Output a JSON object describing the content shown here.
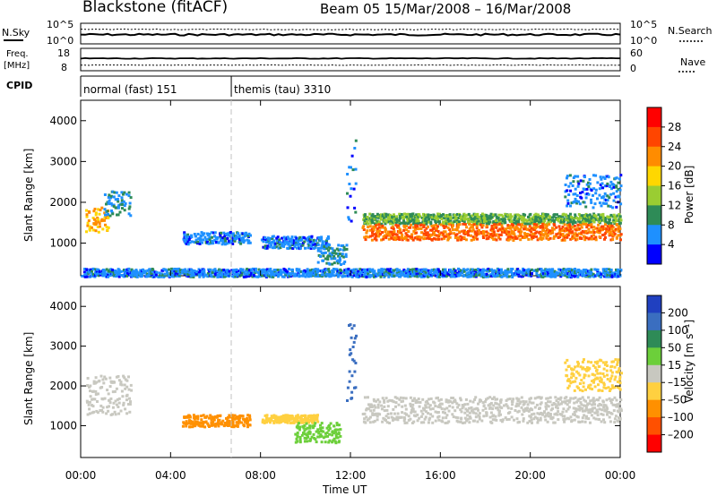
{
  "header": {
    "station": "Blackstone (fitACF)",
    "beam_dates": "Beam 05  15/Mar/2008 – 16/Mar/2008"
  },
  "panel_labels": {
    "nsky": "N.Sky",
    "nsearch": "N.Search",
    "freq_line1": "Freq.",
    "freq_line2": "[MHz]",
    "nave": "Nave",
    "cpid": "CPID"
  },
  "noise_axis": {
    "left_ticks": [
      "10^5",
      "10^0"
    ],
    "right_ticks": [
      "10^5",
      "10^0"
    ]
  },
  "freq_axis": {
    "left_ticks": [
      "18",
      "8"
    ],
    "right_ticks": [
      "60",
      "0"
    ]
  },
  "cpid_segments": [
    {
      "label": "normal (fast) 151",
      "start_h": 0.0
    },
    {
      "label": "themis (tau) 3310",
      "start_h": 6.7
    }
  ],
  "colorbar_power": {
    "label": "Power [dB]",
    "ticks": [
      "28",
      "24",
      "20",
      "16",
      "12",
      "8",
      "4"
    ],
    "colors": [
      "#ff0000",
      "#ff4500",
      "#ff8c00",
      "#ffd700",
      "#9acd32",
      "#2e8b57",
      "#1e90ff",
      "#0000ff"
    ]
  },
  "colorbar_velocity": {
    "label": "Velocity [m s⁻¹]",
    "ticks": [
      "200",
      "100",
      "50",
      "15",
      "–15",
      "–50",
      "–100",
      "–200"
    ],
    "colors": [
      "#2040c0",
      "#3a6ec0",
      "#2e8b57",
      "#6ccf3a",
      "#c8c8c0",
      "#ffd040",
      "#ff9000",
      "#ff5000",
      "#ff0000"
    ]
  },
  "chart_data": [
    {
      "type": "heatmap",
      "title": "Power",
      "xlabel": "Time UT",
      "ylabel": "Slant Range [km]",
      "xlim": [
        0,
        24
      ],
      "ylim": [
        200,
        4500
      ],
      "x_ticks": [
        "00:00",
        "04:00",
        "08:00",
        "12:00",
        "16:00",
        "20:00",
        "00:00"
      ],
      "y_ticks": [
        1000,
        2000,
        3000,
        4000
      ],
      "colorbar": "Power [dB]",
      "regions": [
        {
          "t0": 0.2,
          "t1": 1.2,
          "r0": 1300,
          "r1": 1900,
          "value": 20
        },
        {
          "t0": 1.0,
          "t1": 2.2,
          "r0": 1700,
          "r1": 2300,
          "value": 8
        },
        {
          "t0": 4.5,
          "t1": 7.5,
          "r0": 1000,
          "r1": 1300,
          "value": 6
        },
        {
          "t0": 8.0,
          "t1": 11.0,
          "r0": 900,
          "r1": 1200,
          "value": 6
        },
        {
          "t0": 10.5,
          "t1": 11.8,
          "r0": 500,
          "r1": 1000,
          "value": 8
        },
        {
          "t0": 11.8,
          "t1": 12.2,
          "r0": 1500,
          "r1": 3600,
          "value": 6
        },
        {
          "t0": 12.5,
          "t1": 24.0,
          "r0": 1500,
          "r1": 1750,
          "value": 12
        },
        {
          "t0": 12.5,
          "t1": 24.0,
          "r0": 1100,
          "r1": 1500,
          "value": 24
        },
        {
          "t0": 21.5,
          "t1": 24.0,
          "r0": 1900,
          "r1": 2700,
          "value": 6
        },
        {
          "t0": 0.0,
          "t1": 24.0,
          "r0": 200,
          "r1": 400,
          "value": 6
        }
      ]
    },
    {
      "type": "heatmap",
      "title": "Velocity",
      "xlabel": "Time UT",
      "ylabel": "Slant Range [km]",
      "xlim": [
        0,
        24
      ],
      "ylim": [
        200,
        4500
      ],
      "x_ticks": [
        "00:00",
        "04:00",
        "08:00",
        "12:00",
        "16:00",
        "20:00",
        "00:00"
      ],
      "y_ticks": [
        1000,
        2000,
        3000,
        4000
      ],
      "colorbar": "Velocity [m s⁻¹]",
      "regions": [
        {
          "t0": 0.2,
          "t1": 2.2,
          "r0": 1300,
          "r1": 2300,
          "value": 0
        },
        {
          "t0": 4.5,
          "t1": 7.5,
          "r0": 1000,
          "r1": 1300,
          "value": -60
        },
        {
          "t0": 8.0,
          "t1": 10.5,
          "r0": 1100,
          "r1": 1300,
          "value": -40
        },
        {
          "t0": 9.5,
          "t1": 11.5,
          "r0": 600,
          "r1": 1100,
          "value": 40
        },
        {
          "t0": 11.8,
          "t1": 12.2,
          "r0": 1500,
          "r1": 3600,
          "value": 150
        },
        {
          "t0": 12.5,
          "t1": 24.0,
          "r0": 1100,
          "r1": 1750,
          "value": 0
        },
        {
          "t0": 21.5,
          "t1": 24.0,
          "r0": 1900,
          "r1": 2700,
          "value": -40
        }
      ]
    }
  ],
  "noise_series": {
    "nsky_level": 0.45,
    "nsearch_level": 0.7,
    "freq_level": 0.55,
    "nave_level": 0.25
  }
}
